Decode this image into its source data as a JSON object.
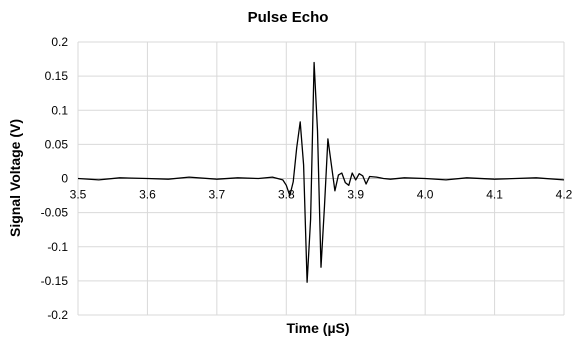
{
  "chart_data": {
    "type": "line",
    "title": "Pulse Echo",
    "xlabel": "Time (µS)",
    "ylabel": "Signal Voltage (V)",
    "xlim": [
      3.5,
      4.2
    ],
    "ylim": [
      -0.2,
      0.2
    ],
    "grid": true,
    "legend": "none",
    "x_ticks": [
      "3.5",
      "3.6",
      "3.7",
      "3.8",
      "3.9",
      "4.0",
      "4.1",
      "4.2"
    ],
    "y_ticks": [
      "0.2",
      "0.15",
      "0.1",
      "0.05",
      "0",
      "-0.05",
      "-0.1",
      "-0.15",
      "-0.2"
    ],
    "series": [
      {
        "color": "#000000",
        "x": [
          3.5,
          3.53,
          3.56,
          3.6,
          3.63,
          3.66,
          3.7,
          3.73,
          3.76,
          3.78,
          3.795,
          3.8,
          3.805,
          3.81,
          3.815,
          3.82,
          3.825,
          3.83,
          3.835,
          3.84,
          3.845,
          3.85,
          3.855,
          3.86,
          3.865,
          3.87,
          3.875,
          3.88,
          3.885,
          3.89,
          3.895,
          3.9,
          3.905,
          3.91,
          3.915,
          3.92,
          3.93,
          3.94,
          3.95,
          3.97,
          4.0,
          4.03,
          4.06,
          4.1,
          4.13,
          4.16,
          4.2
        ],
        "y": [
          0.0,
          -0.002,
          0.001,
          0.0,
          -0.001,
          0.002,
          -0.001,
          0.001,
          0.0,
          0.002,
          -0.002,
          -0.01,
          -0.025,
          -0.005,
          0.045,
          0.083,
          0.02,
          -0.152,
          -0.06,
          0.17,
          0.07,
          -0.13,
          -0.04,
          0.058,
          0.02,
          -0.018,
          0.005,
          0.008,
          -0.006,
          -0.01,
          0.008,
          -0.002,
          0.007,
          0.004,
          -0.008,
          0.003,
          0.002,
          0.0,
          -0.001,
          0.001,
          0.0,
          -0.002,
          0.001,
          -0.001,
          0.0,
          0.001,
          -0.002
        ]
      }
    ]
  }
}
